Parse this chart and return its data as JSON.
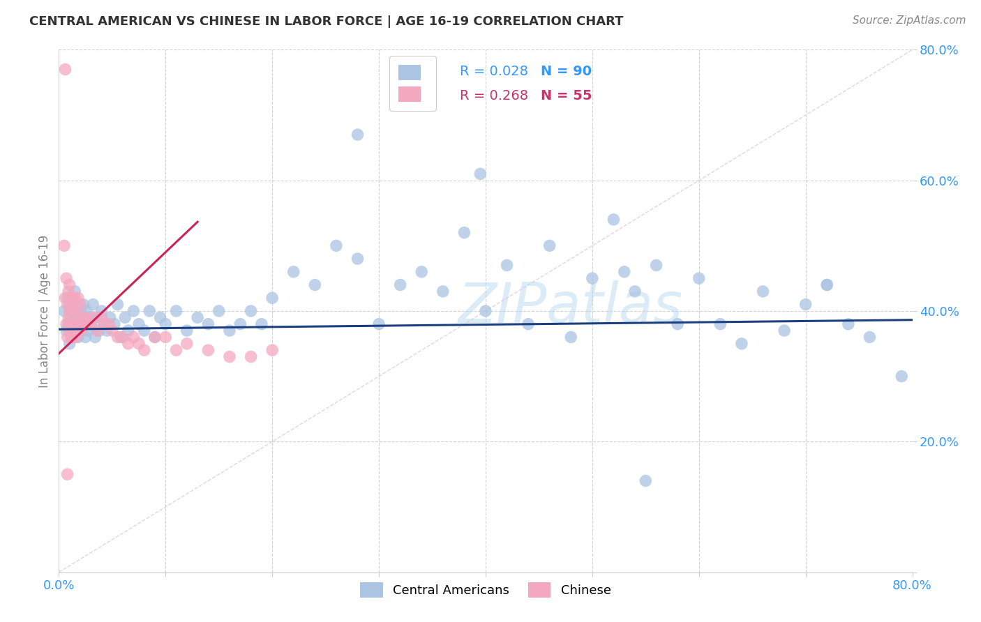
{
  "title": "CENTRAL AMERICAN VS CHINESE IN LABOR FORCE | AGE 16-19 CORRELATION CHART",
  "source": "Source: ZipAtlas.com",
  "ylabel": "In Labor Force | Age 16-19",
  "xlim": [
    0.0,
    0.8
  ],
  "ylim": [
    0.0,
    0.8
  ],
  "blue_color": "#aac4e2",
  "pink_color": "#f4a8bf",
  "blue_line_color": "#1a4080",
  "pink_line_color": "#cc2255",
  "diagonal_color": "#e8c8c8",
  "legend_ca_label": "Central Americans",
  "legend_ch_label": "Chinese",
  "watermark": "ZIPatlas",
  "blue_R": 0.028,
  "blue_N": 90,
  "pink_R": 0.268,
  "pink_N": 55,
  "blue_intercept": 0.372,
  "blue_slope": 0.018,
  "pink_intercept": 0.335,
  "pink_slope": 1.55,
  "blue_x": [
    0.005,
    0.007,
    0.008,
    0.009,
    0.01,
    0.01,
    0.011,
    0.012,
    0.013,
    0.014,
    0.015,
    0.015,
    0.016,
    0.017,
    0.018,
    0.019,
    0.02,
    0.021,
    0.022,
    0.023,
    0.024,
    0.025,
    0.026,
    0.027,
    0.028,
    0.03,
    0.032,
    0.034,
    0.036,
    0.038,
    0.04,
    0.042,
    0.045,
    0.048,
    0.052,
    0.055,
    0.058,
    0.062,
    0.065,
    0.07,
    0.075,
    0.08,
    0.085,
    0.09,
    0.095,
    0.1,
    0.11,
    0.12,
    0.13,
    0.14,
    0.15,
    0.16,
    0.17,
    0.18,
    0.19,
    0.2,
    0.22,
    0.24,
    0.26,
    0.28,
    0.3,
    0.32,
    0.34,
    0.36,
    0.38,
    0.4,
    0.42,
    0.44,
    0.46,
    0.48,
    0.5,
    0.52,
    0.54,
    0.56,
    0.58,
    0.6,
    0.62,
    0.64,
    0.66,
    0.68,
    0.7,
    0.72,
    0.74,
    0.76,
    0.28,
    0.53,
    0.79,
    0.55,
    0.72,
    0.395
  ],
  "blue_y": [
    0.4,
    0.37,
    0.42,
    0.38,
    0.35,
    0.41,
    0.39,
    0.36,
    0.4,
    0.38,
    0.37,
    0.43,
    0.39,
    0.41,
    0.36,
    0.38,
    0.4,
    0.37,
    0.39,
    0.41,
    0.38,
    0.36,
    0.4,
    0.37,
    0.39,
    0.38,
    0.41,
    0.36,
    0.39,
    0.37,
    0.4,
    0.38,
    0.37,
    0.39,
    0.38,
    0.41,
    0.36,
    0.39,
    0.37,
    0.4,
    0.38,
    0.37,
    0.4,
    0.36,
    0.39,
    0.38,
    0.4,
    0.37,
    0.39,
    0.38,
    0.4,
    0.37,
    0.38,
    0.4,
    0.38,
    0.42,
    0.46,
    0.44,
    0.5,
    0.48,
    0.38,
    0.44,
    0.46,
    0.43,
    0.52,
    0.4,
    0.47,
    0.38,
    0.5,
    0.36,
    0.45,
    0.54,
    0.43,
    0.47,
    0.38,
    0.45,
    0.38,
    0.35,
    0.43,
    0.37,
    0.41,
    0.44,
    0.38,
    0.36,
    0.67,
    0.46,
    0.3,
    0.14,
    0.44,
    0.61
  ],
  "pink_x": [
    0.005,
    0.006,
    0.007,
    0.007,
    0.008,
    0.008,
    0.009,
    0.009,
    0.01,
    0.01,
    0.01,
    0.011,
    0.011,
    0.012,
    0.012,
    0.013,
    0.013,
    0.014,
    0.014,
    0.015,
    0.015,
    0.016,
    0.016,
    0.017,
    0.018,
    0.019,
    0.02,
    0.021,
    0.022,
    0.023,
    0.025,
    0.027,
    0.03,
    0.033,
    0.036,
    0.04,
    0.043,
    0.047,
    0.05,
    0.055,
    0.06,
    0.065,
    0.07,
    0.075,
    0.08,
    0.09,
    0.1,
    0.11,
    0.12,
    0.14,
    0.16,
    0.18,
    0.2,
    0.006,
    0.008
  ],
  "pink_y": [
    0.5,
    0.42,
    0.38,
    0.45,
    0.36,
    0.41,
    0.39,
    0.43,
    0.37,
    0.4,
    0.44,
    0.38,
    0.42,
    0.36,
    0.4,
    0.38,
    0.42,
    0.37,
    0.41,
    0.38,
    0.42,
    0.36,
    0.4,
    0.38,
    0.42,
    0.38,
    0.41,
    0.37,
    0.39,
    0.38,
    0.39,
    0.38,
    0.38,
    0.39,
    0.37,
    0.39,
    0.38,
    0.38,
    0.37,
    0.36,
    0.36,
    0.35,
    0.36,
    0.35,
    0.34,
    0.36,
    0.36,
    0.34,
    0.35,
    0.34,
    0.33,
    0.33,
    0.34,
    0.77,
    0.15
  ]
}
